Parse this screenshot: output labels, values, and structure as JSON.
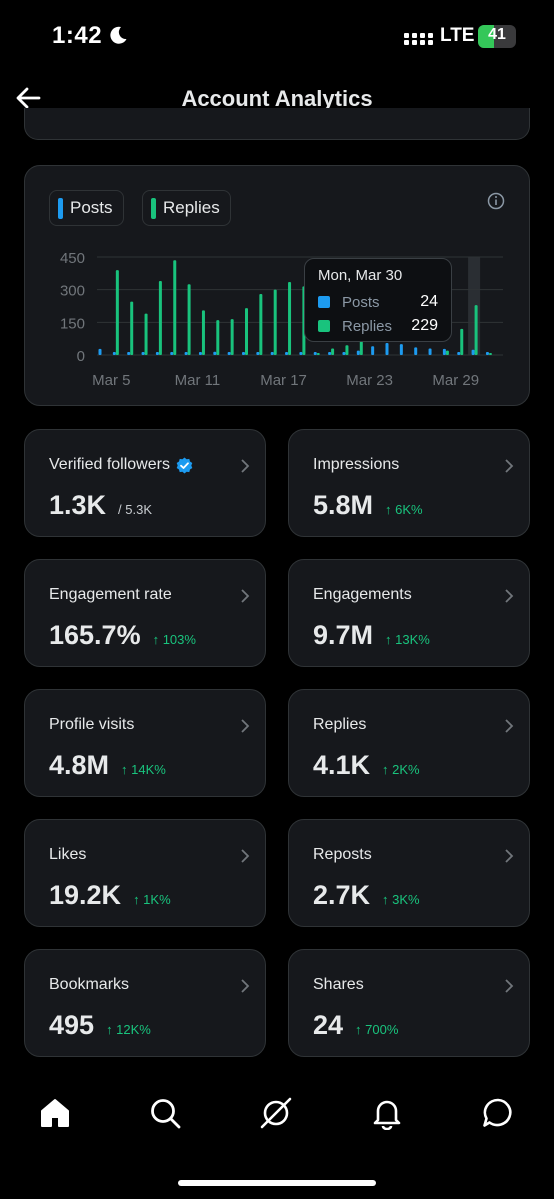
{
  "status_bar": {
    "time": "1:42",
    "network": "LTE",
    "battery_level": "41",
    "battery_fraction": 0.41,
    "icons": [
      "moon-icon",
      "signal-icon",
      "battery-icon"
    ]
  },
  "header": {
    "title": "Account Analytics",
    "back_icon": "arrow-left-icon"
  },
  "chart": {
    "legend": [
      {
        "label": "Posts",
        "color": "#1d9bf0"
      },
      {
        "label": "Replies",
        "color": "#19c37d"
      }
    ],
    "tooltip": {
      "date": "Mon, Mar 30",
      "rows": [
        {
          "label": "Posts",
          "value": "24",
          "color": "#1d9bf0"
        },
        {
          "label": "Replies",
          "value": "229",
          "color": "#19c37d"
        }
      ]
    }
  },
  "chart_data": {
    "type": "bar",
    "title": "",
    "xlabel": "",
    "ylabel": "",
    "ylim": [
      0,
      450
    ],
    "yticks": [
      "450",
      "300",
      "150",
      "0"
    ],
    "xticks": [
      "Mar 5",
      "Mar 11",
      "Mar 17",
      "Mar 23",
      "Mar 29"
    ],
    "grid": true,
    "highlighted_category": "Mar 30",
    "categories": [
      "Mar 4",
      "Mar 5",
      "Mar 6",
      "Mar 7",
      "Mar 8",
      "Mar 9",
      "Mar 10",
      "Mar 11",
      "Mar 12",
      "Mar 13",
      "Mar 14",
      "Mar 15",
      "Mar 16",
      "Mar 17",
      "Mar 18",
      "Mar 19",
      "Mar 20",
      "Mar 21",
      "Mar 22",
      "Mar 23",
      "Mar 24",
      "Mar 25",
      "Mar 26",
      "Mar 27",
      "Mar 28",
      "Mar 29",
      "Mar 30",
      "Mar 31"
    ],
    "series": [
      {
        "name": "Posts",
        "color": "#1d9bf0",
        "values": [
          28,
          5,
          3,
          5,
          12,
          6,
          6,
          5,
          15,
          5,
          8,
          7,
          7,
          5,
          6,
          8,
          5,
          10,
          20,
          40,
          55,
          50,
          35,
          30,
          28,
          8,
          24,
          3
        ]
      },
      {
        "name": "Replies",
        "color": "#19c37d",
        "values": [
          0,
          390,
          245,
          190,
          340,
          435,
          325,
          205,
          160,
          165,
          215,
          280,
          300,
          335,
          315,
          5,
          30,
          45,
          75,
          0,
          0,
          0,
          0,
          0,
          20,
          120,
          229,
          5
        ]
      }
    ]
  },
  "stats": [
    {
      "label": "Verified followers",
      "value": "1.3K",
      "sub": "/ 5.3K",
      "change": "",
      "verified": true
    },
    {
      "label": "Impressions",
      "value": "5.8M",
      "sub": "",
      "change": "↑ 6K%"
    },
    {
      "label": "Engagement rate",
      "value": "165.7%",
      "sub": "",
      "change": "↑ 103%"
    },
    {
      "label": "Engagements",
      "value": "9.7M",
      "sub": "",
      "change": "↑ 13K%"
    },
    {
      "label": "Profile visits",
      "value": "4.8M",
      "sub": "",
      "change": "↑ 14K%"
    },
    {
      "label": "Replies",
      "value": "4.1K",
      "sub": "",
      "change": "↑ 2K%"
    },
    {
      "label": "Likes",
      "value": "19.2K",
      "sub": "",
      "change": "↑ 1K%"
    },
    {
      "label": "Reposts",
      "value": "2.7K",
      "sub": "",
      "change": "↑ 3K%"
    },
    {
      "label": "Bookmarks",
      "value": "495",
      "sub": "",
      "change": "↑ 12K%"
    },
    {
      "label": "Shares",
      "value": "24",
      "sub": "",
      "change": "↑ 700%"
    }
  ],
  "bottom_nav": [
    "home-icon",
    "search-icon",
    "grok-icon",
    "notifications-icon",
    "messages-icon"
  ]
}
